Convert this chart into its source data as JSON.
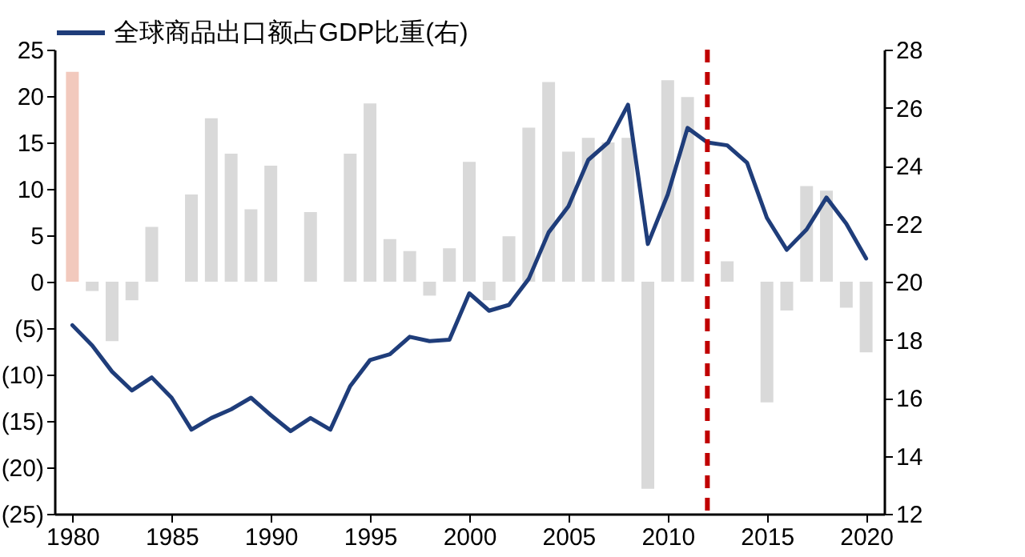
{
  "chart_data": {
    "type": "bar",
    "x": [
      1980,
      1981,
      1982,
      1983,
      1984,
      1985,
      1986,
      1987,
      1988,
      1989,
      1990,
      1991,
      1992,
      1993,
      1994,
      1995,
      1996,
      1997,
      1998,
      1999,
      2000,
      2001,
      2002,
      2003,
      2004,
      2005,
      2006,
      2007,
      2008,
      2009,
      2010,
      2011,
      2012,
      2013,
      2014,
      2015,
      2016,
      2017,
      2018,
      2019,
      2020
    ],
    "xlim": [
      1979.5,
      2020.5
    ],
    "xticks": [
      1980,
      1985,
      1990,
      1995,
      2000,
      2005,
      2010,
      2015,
      2020
    ],
    "series": [
      {
        "colors": [
          "#f2c9bd",
          "#d9d9d9",
          "#d9d9d9",
          "#d9d9d9",
          "#d9d9d9",
          "#d9d9d9",
          "#d9d9d9",
          "#d9d9d9",
          "#d9d9d9",
          "#d9d9d9",
          "#d9d9d9",
          "#d9d9d9",
          "#d9d9d9",
          "#d9d9d9",
          "#d9d9d9",
          "#d9d9d9",
          "#d9d9d9",
          "#d9d9d9",
          "#d9d9d9",
          "#d9d9d9",
          "#d9d9d9",
          "#d9d9d9",
          "#d9d9d9",
          "#d9d9d9",
          "#d9d9d9",
          "#d9d9d9",
          "#d9d9d9",
          "#d9d9d9",
          "#d9d9d9",
          "#d9d9d9",
          "#d9d9d9",
          "#d9d9d9",
          "#d9d9d9",
          "#d9d9d9",
          "#d9d9d9",
          "#d9d9d9",
          "#d9d9d9",
          "#d9d9d9",
          "#d9d9d9",
          "#d9d9d9",
          "#d9d9d9"
        ],
        "values": [
          22.6,
          -1,
          -6.4,
          -2,
          5.9,
          null,
          9.4,
          17.6,
          13.8,
          7.8,
          12.5,
          null,
          7.5,
          null,
          13.8,
          19.2,
          4.6,
          3.3,
          -1.5,
          3.6,
          12.9,
          -2,
          4.9,
          16.6,
          21.5,
          14,
          15.5,
          15,
          15.5,
          -22.3,
          21.7,
          19.9,
          null,
          2.2,
          null,
          -13,
          -3.1,
          10.3,
          9.8,
          -2.8,
          -7.6
        ]
      },
      {
        "type": "line",
        "axis": "y2",
        "name": "全球商品出口额占GDP比重(右)",
        "color": "#1f3d7a",
        "values": [
          18.5,
          17.8,
          16.9,
          16.25,
          16.7,
          16.0,
          14.9,
          15.3,
          15.6,
          16.0,
          15.4,
          14.85,
          15.3,
          14.9,
          16.4,
          17.3,
          17.5,
          18.1,
          17.95,
          18.0,
          19.6,
          19.0,
          19.2,
          20.1,
          21.7,
          22.6,
          24.2,
          24.8,
          26.1,
          21.3,
          23.0,
          25.3,
          24.8,
          24.7,
          24.1,
          22.2,
          21.1,
          21.8,
          22.9,
          22.0,
          20.8
        ]
      }
    ],
    "ylim": [
      -25,
      25
    ],
    "yticks": [
      {
        "value": -25,
        "label": "(25)"
      },
      {
        "value": -20,
        "label": "(20)"
      },
      {
        "value": -15,
        "label": "(15)"
      },
      {
        "value": -10,
        "label": "(10)"
      },
      {
        "value": -5,
        "label": "(5)"
      },
      0,
      5,
      10,
      15,
      20,
      25
    ],
    "y2lim": [
      12,
      28
    ],
    "y2ticks": [
      12,
      14,
      16,
      18,
      20,
      22,
      24,
      26,
      28
    ],
    "ref_lines": [
      {
        "axis": "x",
        "value": 2012,
        "color": "#c00000",
        "line_style": "dashed"
      }
    ],
    "legend": "top",
    "grid": false
  }
}
